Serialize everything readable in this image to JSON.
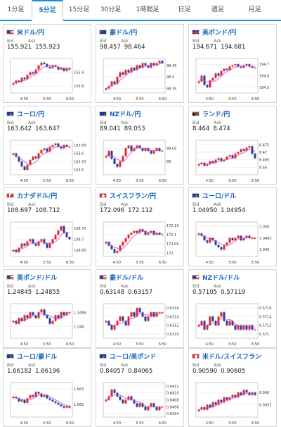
{
  "tabs": [
    {
      "label": "1分足",
      "active": false
    },
    {
      "label": "5分足",
      "active": true
    },
    {
      "label": "15分足",
      "active": false
    },
    {
      "label": "30分足",
      "active": false
    },
    {
      "label": "1時間足",
      "active": false
    },
    {
      "label": "日足",
      "active": false
    },
    {
      "label": "週足",
      "active": false
    },
    {
      "label": "月足",
      "active": false
    }
  ],
  "card_labels": {
    "bid": "Bid",
    "ask": "Ask"
  },
  "colors": {
    "accent": "#1a8fd6",
    "bull": "#e0292b",
    "bear": "#2a3d9c",
    "ma": "#d040d0",
    "pair_text": "#1565b8"
  },
  "cards": [
    {
      "pair": "米ドル/円",
      "flag": "us-flag",
      "bid": "155.921",
      "ask": "155.923",
      "chart_data": {
        "type": "candlestick",
        "x_ticks": [
          "4:50",
          "5:50",
          "6:50"
        ],
        "y_ticks": [
          "155.9",
          "155.8"
        ],
        "ylim": [
          155.75,
          156.0
        ],
        "closes": [
          155.82,
          155.84,
          155.83,
          155.86,
          155.85,
          155.88,
          155.9,
          155.89,
          155.92,
          155.95,
          155.97,
          155.96,
          155.94,
          155.93,
          155.95,
          155.94,
          155.92,
          155.93,
          155.91,
          155.93,
          155.92
        ]
      }
    },
    {
      "pair": "豪ドル/円",
      "flag": "au-flag",
      "bid": "98.457",
      "ask": "98.464",
      "chart_data": {
        "type": "candlestick",
        "x_ticks": [
          "4:50",
          "5:50",
          "6:50"
        ],
        "y_ticks": [
          "98.45",
          "98.4",
          "98.35"
        ],
        "ylim": [
          98.33,
          98.48
        ],
        "closes": [
          98.35,
          98.36,
          98.38,
          98.37,
          98.4,
          98.42,
          98.41,
          98.43,
          98.42,
          98.44,
          98.43,
          98.45,
          98.44,
          98.46,
          98.45,
          98.44,
          98.46,
          98.45,
          98.46,
          98.47,
          98.46
        ]
      }
    },
    {
      "pair": "英ポンド/円",
      "flag": "gb-flag",
      "bid": "194.671",
      "ask": "194.681",
      "chart_data": {
        "type": "candlestick",
        "x_ticks": [
          "4:50",
          "5:50",
          "6:50"
        ],
        "y_ticks": [
          "194.7",
          "194.6",
          "194.5"
        ],
        "ylim": [
          194.45,
          194.75
        ],
        "closes": [
          194.55,
          194.6,
          194.52,
          194.5,
          194.56,
          194.58,
          194.62,
          194.6,
          194.64,
          194.66,
          194.65,
          194.68,
          194.69,
          194.7,
          194.68,
          194.67,
          194.69,
          194.7,
          194.68,
          194.67,
          194.67
        ]
      }
    },
    {
      "pair": "ユーロ/円",
      "flag": "eu-flag",
      "bid": "163.642",
      "ask": "163.647",
      "chart_data": {
        "type": "candlestick",
        "x_ticks": [
          "4:50",
          "5:50",
          "6:50"
        ],
        "y_ticks": [
          "163.65",
          "163.6",
          "163.55",
          "163.5"
        ],
        "ylim": [
          163.47,
          163.68
        ],
        "closes": [
          163.6,
          163.58,
          163.55,
          163.52,
          163.5,
          163.53,
          163.56,
          163.58,
          163.57,
          163.6,
          163.62,
          163.63,
          163.61,
          163.64,
          163.65,
          163.66,
          163.64,
          163.63,
          163.65,
          163.64,
          163.64
        ]
      }
    },
    {
      "pair": "NZドル/円",
      "flag": "nz-flag",
      "bid": "89.041",
      "ask": "89.053",
      "chart_data": {
        "type": "candlestick",
        "x_ticks": [
          "4:50",
          "5:50",
          "6:50"
        ],
        "y_ticks": [
          "89.05",
          "89"
        ],
        "ylim": [
          88.95,
          89.08
        ],
        "closes": [
          89.02,
          89.04,
          89.01,
          88.99,
          88.98,
          89.0,
          89.02,
          89.05,
          89.06,
          89.04,
          89.05,
          89.06,
          89.05,
          89.04,
          89.05,
          89.04,
          89.03,
          89.04,
          89.05,
          89.04,
          89.04
        ]
      }
    },
    {
      "pair": "ランド/円",
      "flag": "za-flag",
      "bid": "8.464",
      "ask": "8.474",
      "chart_data": {
        "type": "candlestick",
        "x_ticks": [
          "4:50",
          "5:50",
          "6:50"
        ],
        "y_ticks": [
          "8.475",
          "8.47",
          "8.465",
          "8.46"
        ],
        "ylim": [
          8.455,
          8.478
        ],
        "closes": [
          8.462,
          8.463,
          8.461,
          8.462,
          8.464,
          8.463,
          8.465,
          8.466,
          8.464,
          8.465,
          8.467,
          8.468,
          8.466,
          8.469,
          8.47,
          8.472,
          8.471,
          8.473,
          8.474,
          8.469,
          8.466
        ]
      }
    },
    {
      "pair": "カナダドル/円",
      "flag": "ca-flag",
      "bid": "108.697",
      "ask": "108.712",
      "chart_data": {
        "type": "candlestick",
        "x_ticks": [
          "4:50",
          "5:50",
          "6:50"
        ],
        "y_ticks": [
          "108.75",
          "108.7",
          "108.65"
        ],
        "ylim": [
          108.62,
          108.78
        ],
        "closes": [
          108.65,
          108.64,
          108.66,
          108.68,
          108.67,
          108.69,
          108.7,
          108.68,
          108.67,
          108.69,
          108.7,
          108.68,
          108.66,
          108.68,
          108.7,
          108.72,
          108.74,
          108.76,
          108.73,
          108.71,
          108.7
        ]
      }
    },
    {
      "pair": "スイスフラン/円",
      "flag": "ch-flag",
      "bid": "172.096",
      "ask": "172.112",
      "chart_data": {
        "type": "candlestick",
        "x_ticks": [
          "4:50",
          "5:50",
          "6:50"
        ],
        "y_ticks": [
          "172.15",
          "172.1",
          "172.05",
          "172"
        ],
        "ylim": [
          171.98,
          172.17
        ],
        "closes": [
          172.06,
          172.04,
          172.02,
          172.0,
          172.01,
          172.04,
          172.06,
          172.08,
          172.1,
          172.11,
          172.12,
          172.11,
          172.13,
          172.12,
          172.1,
          172.11,
          172.12,
          172.1,
          172.11,
          172.1,
          172.1
        ]
      }
    },
    {
      "pair": "ユーロ/ドル",
      "flag": "eu-flag",
      "bid": "1.04950",
      "ask": "1.04954",
      "chart_data": {
        "type": "candlestick",
        "x_ticks": [
          "4:50",
          "5:50",
          "6:50"
        ],
        "y_ticks": [
          "1.050",
          "1.0495",
          "1.049"
        ],
        "ylim": [
          1.0487,
          1.0502
        ],
        "closes": [
          1.0497,
          1.0496,
          1.0494,
          1.0493,
          1.0495,
          1.0494,
          1.0492,
          1.0491,
          1.049,
          1.0492,
          1.0493,
          1.0495,
          1.0494,
          1.0495,
          1.0496,
          1.0494,
          1.0495,
          1.0496,
          1.0495,
          1.0495,
          1.0495
        ]
      }
    },
    {
      "pair": "英ポンド/ドル",
      "flag": "us-flag",
      "bid": "1.24845",
      "ask": "1.24855",
      "chart_data": {
        "type": "candlestick",
        "x_ticks": [
          "4:50",
          "5:50",
          "6:50"
        ],
        "y_ticks": [
          "1.2485",
          "1.248"
        ],
        "ylim": [
          1.2476,
          1.2488
        ],
        "closes": [
          1.2482,
          1.2481,
          1.2483,
          1.2482,
          1.2484,
          1.2483,
          1.2485,
          1.2484,
          1.2483,
          1.2485,
          1.2486,
          1.2484,
          1.2483,
          1.2481,
          1.2482,
          1.2484,
          1.2483,
          1.2485,
          1.2484,
          1.2485,
          1.2485
        ]
      }
    },
    {
      "pair": "豪ドル/ドル",
      "flag": "us-flag",
      "bid": "0.63148",
      "ask": "0.63157",
      "chart_data": {
        "type": "candlestick",
        "x_ticks": [
          "4:50",
          "5:50",
          "6:50"
        ],
        "y_ticks": [
          "0.6316",
          "0.6314",
          "0.6312",
          "0.6310"
        ],
        "ylim": [
          0.6309,
          0.6317
        ],
        "closes": [
          0.6313,
          0.6312,
          0.6311,
          0.6312,
          0.6313,
          0.6314,
          0.6313,
          0.6312,
          0.6314,
          0.6315,
          0.6314,
          0.6316,
          0.6315,
          0.6314,
          0.6313,
          0.6314,
          0.6315,
          0.6314,
          0.6315,
          0.6315,
          0.6315
        ]
      }
    },
    {
      "pair": "NZドル/ドル",
      "flag": "us-flag",
      "bid": "0.57105",
      "ask": "0.57119",
      "chart_data": {
        "type": "candlestick",
        "x_ticks": [
          "4:50",
          "5:50",
          "6:50"
        ],
        "y_ticks": [
          "0.5716",
          "0.5714",
          "0.5712",
          "0.571"
        ],
        "ylim": [
          0.5709,
          0.5717
        ],
        "closes": [
          0.5712,
          0.5713,
          0.5711,
          0.5712,
          0.5714,
          0.5713,
          0.5712,
          0.5714,
          0.5715,
          0.5713,
          0.5712,
          0.5713,
          0.5712,
          0.5711,
          0.5712,
          0.5711,
          0.5712,
          0.5711,
          0.5712,
          0.5711,
          0.5711
        ]
      }
    },
    {
      "pair": "ユーロ/豪ドル",
      "flag": "eu-flag",
      "bid": "1.66182",
      "ask": "1.66196",
      "chart_data": {
        "type": "candlestick",
        "x_ticks": [
          "4:50",
          "5:50",
          "6:50"
        ],
        "y_ticks": [
          "1.663",
          "1.662"
        ],
        "ylim": [
          1.6612,
          1.6634
        ],
        "closes": [
          1.6625,
          1.6624,
          1.6622,
          1.6623,
          1.6621,
          1.6624,
          1.6626,
          1.6625,
          1.6628,
          1.6627,
          1.6625,
          1.6626,
          1.6624,
          1.6623,
          1.6622,
          1.6621,
          1.662,
          1.6619,
          1.6618,
          1.6619,
          1.6618
        ]
      }
    },
    {
      "pair": "ユーロ/英ポンド",
      "flag": "eu-flag",
      "bid": "0.84057",
      "ask": "0.84065",
      "chart_data": {
        "type": "candlestick",
        "x_ticks": [
          "4:50",
          "5:50",
          "6:50"
        ],
        "y_ticks": [
          "0.8412",
          "0.8410",
          "0.8408",
          "0.8406",
          "0.8404"
        ],
        "ylim": [
          0.8403,
          0.8413
        ],
        "closes": [
          0.8408,
          0.8409,
          0.8411,
          0.841,
          0.8409,
          0.8408,
          0.8407,
          0.8408,
          0.8409,
          0.8408,
          0.8407,
          0.8406,
          0.8407,
          0.8406,
          0.8405,
          0.8406,
          0.8407,
          0.8406,
          0.8405,
          0.8406,
          0.8406
        ]
      }
    },
    {
      "pair": "米ドル/スイスフラン",
      "flag": "ch-flag",
      "bid": "0.90590",
      "ask": "0.90605",
      "chart_data": {
        "type": "candlestick",
        "x_ticks": [
          "4:50",
          "5:50",
          "6:50"
        ],
        "y_ticks": [
          "0.906",
          "0.9055"
        ],
        "ylim": [
          0.905,
          0.9064
        ],
        "closes": [
          0.9053,
          0.9054,
          0.9053,
          0.9055,
          0.9054,
          0.9056,
          0.9055,
          0.9057,
          0.9056,
          0.9058,
          0.9057,
          0.9058,
          0.9059,
          0.9058,
          0.906,
          0.9059,
          0.9061,
          0.906,
          0.9059,
          0.906,
          0.9059
        ]
      }
    }
  ]
}
